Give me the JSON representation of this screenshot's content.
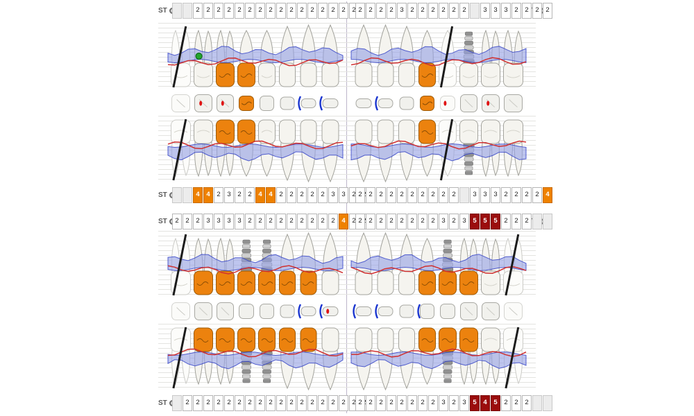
{
  "labels": {
    "st": "ST"
  },
  "colors": {
    "orange": "#ec820e",
    "orange_dark": "#9c5a06",
    "dark_red": "#9b0d0d",
    "perio_band": "#96a1e3",
    "perio_line": "#2d3cc4",
    "gingiva": "#cf3030",
    "grid": "#e3e3e0",
    "tooth_stroke": "#a3a39d",
    "tooth_fill": "#f5f4ef",
    "implant_dark": "#909090",
    "implant_light": "#cfcfcf",
    "missing_mark": "#1b1b1b",
    "marker_green": "#23a52f",
    "caries_red": "#e01212",
    "bracket_blue": "#1a35cf"
  },
  "st_rows": [
    {
      "left": [
        "",
        "",
        "2",
        "2",
        "2",
        "2",
        "2",
        "2",
        "2",
        "2",
        "2",
        "2",
        "2",
        "2",
        "2",
        "2",
        "2",
        "2",
        ""
      ],
      "right": [
        "2",
        "2",
        "2",
        "2",
        "3",
        "2",
        "2",
        "2",
        "2",
        "2",
        "2",
        "",
        "3",
        "3",
        "3",
        "2",
        "2",
        "2",
        "2"
      ]
    },
    {
      "left": [
        "",
        "",
        "4o",
        "4o",
        "2",
        "3",
        "2",
        "2",
        "4o",
        "4o",
        "2",
        "2",
        "2",
        "2",
        "2",
        "3",
        "3",
        "2",
        "2"
      ],
      "right": [
        "2",
        "2",
        "2",
        "2",
        "2",
        "2",
        "2",
        "2",
        "2",
        "2",
        "",
        "3",
        "3",
        "3",
        "2",
        "2",
        "2",
        "2",
        "4o"
      ]
    },
    {
      "left": [
        "2",
        "2",
        "2",
        "3",
        "3",
        "3",
        "3",
        "2",
        "2",
        "2",
        "2",
        "2",
        "2",
        "2",
        "2",
        "2",
        "4o",
        "2",
        "2"
      ],
      "right": [
        "2",
        "2",
        "2",
        "2",
        "2",
        "2",
        "2",
        "2",
        "3",
        "2",
        "3",
        "5r",
        "5r",
        "5r",
        "2",
        "2",
        "2",
        "",
        ""
      ]
    },
    {
      "left": [
        "",
        "2",
        "2",
        "2",
        "2",
        "2",
        "2",
        "2",
        "2",
        "2",
        "2",
        "2",
        "2",
        "2",
        "2",
        "2",
        "2",
        "2",
        "2"
      ],
      "right": [
        "2",
        "2",
        "2",
        "2",
        "2",
        "2",
        "2",
        "2",
        "3",
        "2",
        "3",
        "5r",
        "4r",
        "5r",
        "2",
        "2",
        "2",
        "",
        ""
      ]
    }
  ],
  "teeth": {
    "types": [
      "molar",
      "molar",
      "molar",
      "premolar",
      "premolar",
      "canine",
      "incisor",
      "incisor",
      "incisor",
      "incisor",
      "canine",
      "premolar",
      "premolar",
      "molar",
      "molar",
      "molar"
    ],
    "upper": {
      "states": [
        "missing",
        "normal",
        "crown",
        "crown",
        "normal",
        "normal",
        "normal",
        "normal",
        "normal",
        "normal",
        "normal",
        "crown",
        "missing",
        "implant",
        "normal",
        "normal"
      ],
      "markers": {
        "1": "green-dot"
      }
    },
    "lower": {
      "states": [
        "missing",
        "crown",
        "crown",
        "implant-crown",
        "implant-crown",
        "crown",
        "crown",
        "normal",
        "normal",
        "normal",
        "normal",
        "crown",
        "implant-crown",
        "crown",
        "normal",
        "missing"
      ]
    },
    "upper_occlusal": [
      {},
      {
        "dot": true
      },
      {
        "dot": true
      },
      {
        "crown": true
      },
      {},
      {},
      {
        "bracket": true
      },
      {
        "bracket": true
      },
      {},
      {
        "bracket": true
      },
      {},
      {
        "crown": true
      },
      {
        "dot": true
      },
      {},
      {
        "dot": true
      },
      {}
    ],
    "lower_occlusal": [
      {},
      {},
      {},
      {},
      {},
      {},
      {
        "bracket": true
      },
      {
        "bracket": true,
        "dot": true
      },
      {
        "bracket": true
      },
      {
        "bracket": true
      },
      {},
      {
        "bracket": true
      },
      {},
      {},
      {},
      {}
    ]
  }
}
